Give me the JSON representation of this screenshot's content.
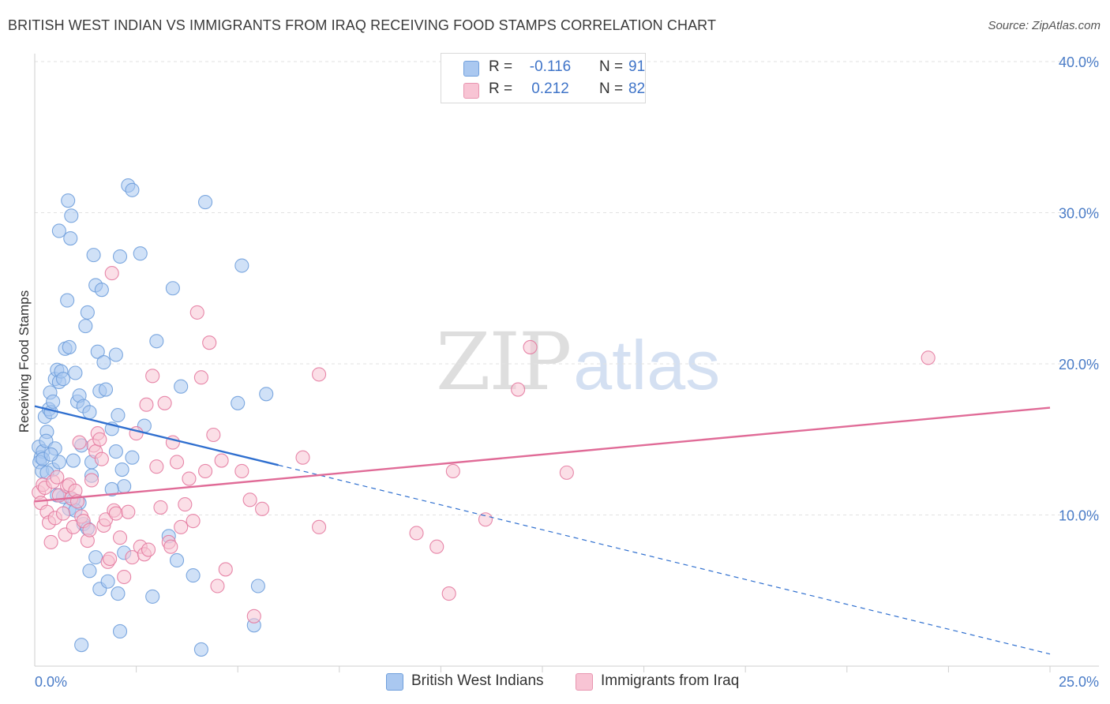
{
  "title": "BRITISH WEST INDIAN VS IMMIGRANTS FROM IRAQ RECEIVING FOOD STAMPS CORRELATION CHART",
  "source": "Source: ZipAtlas.com",
  "watermark": {
    "zip": "ZIP",
    "atlas": "atlas"
  },
  "legend_top": {
    "rows": [
      {
        "r_label": "R =",
        "r_value": "-0.116",
        "n_label": "N =",
        "n_value": "91",
        "color": "#aac8f0",
        "border": "#6f9fdc"
      },
      {
        "r_label": "R =",
        "r_value": "0.212",
        "n_label": "N =",
        "n_value": "82",
        "color": "#f8c4d4",
        "border": "#e895b0"
      }
    ]
  },
  "legend_bottom": {
    "items": [
      {
        "label": "British West Indians",
        "color": "#aac8f0",
        "border": "#6f9fdc"
      },
      {
        "label": "Immigrants from Iraq",
        "color": "#f8c4d4",
        "border": "#e895b0"
      }
    ]
  },
  "chart_data": {
    "type": "scatter",
    "title": "BRITISH WEST INDIAN VS IMMIGRANTS FROM IRAQ RECEIVING FOOD STAMPS CORRELATION CHART",
    "xlabel": "",
    "ylabel": "Receiving Food Stamps",
    "xlim": [
      0,
      25
    ],
    "ylim": [
      0,
      40
    ],
    "x_ticks": [
      "0.0%",
      "25.0%"
    ],
    "y_ticks": [
      {
        "value": 10,
        "label": "10.0%"
      },
      {
        "value": 20,
        "label": "20.0%"
      },
      {
        "value": 30,
        "label": "30.0%"
      },
      {
        "value": 40,
        "label": "40.0%"
      }
    ],
    "grid": true,
    "legend_position": "bottom",
    "series": [
      {
        "name": "British West Indians",
        "color": "#6f9fdc",
        "fill": "#aac8f0",
        "trend": {
          "x0": 0,
          "y0": 17.2,
          "x1": 6.0,
          "y1": 13.3,
          "dash_to_x": 25,
          "dash_to_y": 0.8
        },
        "points": [
          [
            0.1,
            14.5
          ],
          [
            0.15,
            13.8
          ],
          [
            0.2,
            14.2
          ],
          [
            0.12,
            13.5
          ],
          [
            0.18,
            12.9
          ],
          [
            0.25,
            16.5
          ],
          [
            0.3,
            15.5
          ],
          [
            0.28,
            14.9
          ],
          [
            0.35,
            17.0
          ],
          [
            0.4,
            16.8
          ],
          [
            0.38,
            18.1
          ],
          [
            0.45,
            17.5
          ],
          [
            0.5,
            19.0
          ],
          [
            0.55,
            19.6
          ],
          [
            0.6,
            18.8
          ],
          [
            0.65,
            19.5
          ],
          [
            0.7,
            19.0
          ],
          [
            0.75,
            21.0
          ],
          [
            0.8,
            24.2
          ],
          [
            0.82,
            30.8
          ],
          [
            0.85,
            21.1
          ],
          [
            0.9,
            29.8
          ],
          [
            0.88,
            28.3
          ],
          [
            0.6,
            28.8
          ],
          [
            0.95,
            13.6
          ],
          [
            1.0,
            19.4
          ],
          [
            1.05,
            17.5
          ],
          [
            1.1,
            17.9
          ],
          [
            1.15,
            14.6
          ],
          [
            1.2,
            17.2
          ],
          [
            1.25,
            22.5
          ],
          [
            1.3,
            23.4
          ],
          [
            1.35,
            16.8
          ],
          [
            1.4,
            13.5
          ],
          [
            1.45,
            27.2
          ],
          [
            1.5,
            25.2
          ],
          [
            1.55,
            20.8
          ],
          [
            1.6,
            18.2
          ],
          [
            1.65,
            24.9
          ],
          [
            1.7,
            20.1
          ],
          [
            1.75,
            18.3
          ],
          [
            1.9,
            15.7
          ],
          [
            2.0,
            20.6
          ],
          [
            2.05,
            16.6
          ],
          [
            2.1,
            27.1
          ],
          [
            2.15,
            13.0
          ],
          [
            2.2,
            11.9
          ],
          [
            2.3,
            31.8
          ],
          [
            2.4,
            31.5
          ],
          [
            2.6,
            27.3
          ],
          [
            2.7,
            15.9
          ],
          [
            3.0,
            21.5
          ],
          [
            3.4,
            25.0
          ],
          [
            3.6,
            18.5
          ],
          [
            4.2,
            30.7
          ],
          [
            5.1,
            26.5
          ],
          [
            5.0,
            17.4
          ],
          [
            5.7,
            18.0
          ],
          [
            1.1,
            10.8
          ],
          [
            1.2,
            9.4
          ],
          [
            1.3,
            9.1
          ],
          [
            1.4,
            12.6
          ],
          [
            1.5,
            7.2
          ],
          [
            1.35,
            6.3
          ],
          [
            1.6,
            5.1
          ],
          [
            1.8,
            5.6
          ],
          [
            1.9,
            11.7
          ],
          [
            2.0,
            14.2
          ],
          [
            2.05,
            4.8
          ],
          [
            2.2,
            7.5
          ],
          [
            2.1,
            2.3
          ],
          [
            2.4,
            13.8
          ],
          [
            2.9,
            4.6
          ],
          [
            3.3,
            8.6
          ],
          [
            3.5,
            7.0
          ],
          [
            3.9,
            6.0
          ],
          [
            4.1,
            1.1
          ],
          [
            5.4,
            2.7
          ],
          [
            5.5,
            5.3
          ],
          [
            1.15,
            1.4
          ],
          [
            0.5,
            14.4
          ],
          [
            0.45,
            13.0
          ],
          [
            0.7,
            11.2
          ],
          [
            0.95,
            11.0
          ],
          [
            0.3,
            12.8
          ],
          [
            0.2,
            13.7
          ],
          [
            0.85,
            10.4
          ],
          [
            1.0,
            10.3
          ],
          [
            0.55,
            11.3
          ],
          [
            0.6,
            13.5
          ],
          [
            0.4,
            14.0
          ]
        ]
      },
      {
        "name": "Immigrants from Iraq",
        "color": "#e47aa0",
        "fill": "#f8c4d4",
        "trend": {
          "x0": 0,
          "y0": 10.9,
          "x1": 25,
          "y1": 17.1
        },
        "points": [
          [
            0.1,
            11.5
          ],
          [
            0.15,
            10.8
          ],
          [
            0.2,
            12.0
          ],
          [
            0.25,
            11.8
          ],
          [
            0.3,
            10.2
          ],
          [
            0.35,
            9.5
          ],
          [
            0.4,
            8.2
          ],
          [
            0.45,
            12.2
          ],
          [
            0.5,
            9.8
          ],
          [
            0.55,
            12.5
          ],
          [
            0.6,
            11.3
          ],
          [
            0.7,
            10.1
          ],
          [
            0.75,
            8.7
          ],
          [
            0.8,
            11.9
          ],
          [
            0.85,
            12.0
          ],
          [
            0.9,
            11.1
          ],
          [
            0.95,
            9.2
          ],
          [
            1.0,
            11.6
          ],
          [
            1.05,
            10.9
          ],
          [
            1.1,
            14.8
          ],
          [
            1.15,
            9.9
          ],
          [
            1.2,
            9.6
          ],
          [
            1.3,
            8.3
          ],
          [
            1.35,
            9.0
          ],
          [
            1.4,
            12.3
          ],
          [
            1.45,
            14.6
          ],
          [
            1.5,
            14.2
          ],
          [
            1.55,
            15.4
          ],
          [
            1.6,
            15.0
          ],
          [
            1.65,
            13.7
          ],
          [
            1.7,
            9.3
          ],
          [
            1.75,
            9.7
          ],
          [
            1.8,
            6.9
          ],
          [
            1.85,
            7.1
          ],
          [
            1.9,
            26.0
          ],
          [
            1.95,
            10.3
          ],
          [
            2.0,
            10.1
          ],
          [
            2.1,
            8.5
          ],
          [
            2.2,
            5.9
          ],
          [
            2.3,
            10.2
          ],
          [
            2.4,
            7.2
          ],
          [
            2.5,
            15.4
          ],
          [
            2.6,
            7.9
          ],
          [
            2.7,
            7.4
          ],
          [
            2.75,
            17.3
          ],
          [
            2.8,
            7.7
          ],
          [
            2.9,
            19.2
          ],
          [
            3.0,
            13.2
          ],
          [
            3.1,
            10.5
          ],
          [
            3.2,
            17.4
          ],
          [
            3.3,
            8.2
          ],
          [
            3.35,
            7.9
          ],
          [
            3.4,
            14.8
          ],
          [
            3.5,
            13.5
          ],
          [
            3.6,
            9.2
          ],
          [
            3.7,
            10.7
          ],
          [
            3.8,
            12.4
          ],
          [
            3.9,
            9.6
          ],
          [
            4.0,
            23.4
          ],
          [
            4.1,
            19.1
          ],
          [
            4.2,
            12.9
          ],
          [
            4.3,
            21.4
          ],
          [
            4.4,
            15.3
          ],
          [
            4.5,
            5.3
          ],
          [
            4.6,
            13.6
          ],
          [
            4.7,
            6.4
          ],
          [
            5.1,
            12.9
          ],
          [
            5.3,
            11.0
          ],
          [
            5.4,
            3.3
          ],
          [
            5.6,
            10.4
          ],
          [
            6.6,
            13.8
          ],
          [
            7.0,
            19.3
          ],
          [
            7.0,
            9.2
          ],
          [
            9.4,
            8.8
          ],
          [
            9.9,
            7.9
          ],
          [
            10.2,
            4.8
          ],
          [
            10.3,
            12.9
          ],
          [
            11.1,
            9.7
          ],
          [
            12.2,
            21.1
          ],
          [
            11.9,
            18.3
          ],
          [
            13.1,
            12.8
          ],
          [
            22.0,
            20.4
          ]
        ]
      }
    ]
  }
}
